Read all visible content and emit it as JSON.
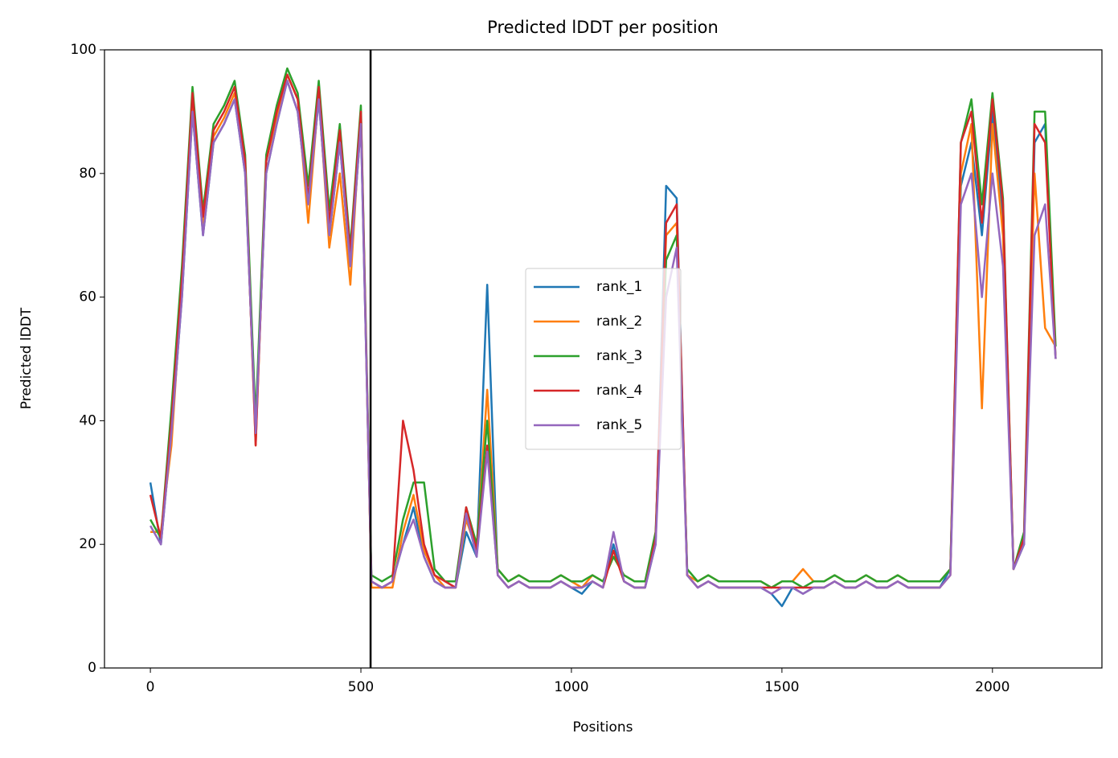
{
  "chart_data": {
    "type": "line",
    "title": "Predicted lDDT per position",
    "xlabel": "Positions",
    "ylabel": "Predicted lDDT",
    "x": [
      0,
      25,
      50,
      75,
      100,
      125,
      150,
      175,
      200,
      225,
      250,
      275,
      300,
      325,
      350,
      375,
      400,
      425,
      450,
      475,
      500,
      525,
      550,
      575,
      600,
      625,
      650,
      675,
      700,
      725,
      750,
      775,
      800,
      825,
      850,
      875,
      900,
      925,
      950,
      975,
      1000,
      1025,
      1050,
      1075,
      1100,
      1125,
      1150,
      1175,
      1200,
      1225,
      1250,
      1275,
      1300,
      1325,
      1350,
      1375,
      1400,
      1425,
      1450,
      1475,
      1500,
      1525,
      1550,
      1575,
      1600,
      1625,
      1650,
      1675,
      1700,
      1725,
      1750,
      1775,
      1800,
      1825,
      1850,
      1875,
      1900,
      1925,
      1950,
      1975,
      2000,
      2025,
      2050,
      2075,
      2100,
      2125,
      2150
    ],
    "series": [
      {
        "name": "rank_1",
        "color": "#1f77b4",
        "values": [
          30,
          20,
          38,
          60,
          90,
          70,
          85,
          88,
          92,
          80,
          38,
          80,
          88,
          95,
          90,
          75,
          92,
          70,
          85,
          65,
          88,
          14,
          13,
          14,
          20,
          26,
          18,
          14,
          13,
          13,
          22,
          18,
          62,
          15,
          13,
          14,
          13,
          13,
          13,
          14,
          13,
          12,
          14,
          13,
          20,
          14,
          13,
          13,
          20,
          78,
          76,
          15,
          13,
          14,
          13,
          13,
          13,
          13,
          13,
          12,
          10,
          13,
          12,
          13,
          13,
          14,
          13,
          13,
          14,
          13,
          13,
          14,
          13,
          13,
          13,
          13,
          16,
          78,
          85,
          70,
          90,
          72,
          16,
          20,
          85,
          88,
          50
        ]
      },
      {
        "name": "rank_2",
        "color": "#ff7f0e",
        "values": [
          22,
          22,
          36,
          62,
          92,
          72,
          86,
          89,
          93,
          82,
          36,
          82,
          89,
          96,
          92,
          72,
          93,
          68,
          80,
          62,
          90,
          13,
          13,
          13,
          22,
          28,
          19,
          15,
          13,
          13,
          24,
          19,
          45,
          16,
          14,
          15,
          14,
          14,
          14,
          15,
          14,
          13,
          15,
          14,
          18,
          15,
          14,
          14,
          21,
          70,
          72,
          15,
          14,
          15,
          14,
          14,
          14,
          14,
          14,
          13,
          14,
          14,
          16,
          14,
          14,
          15,
          14,
          14,
          15,
          14,
          14,
          15,
          14,
          14,
          14,
          14,
          16,
          80,
          88,
          42,
          88,
          70,
          16,
          21,
          80,
          55,
          52
        ]
      },
      {
        "name": "rank_3",
        "color": "#2ca02c",
        "values": [
          24,
          21,
          42,
          65,
          94,
          74,
          88,
          91,
          95,
          83,
          40,
          83,
          91,
          97,
          93,
          78,
          95,
          74,
          88,
          68,
          91,
          15,
          14,
          15,
          24,
          30,
          30,
          16,
          14,
          14,
          26,
          20,
          40,
          16,
          14,
          15,
          14,
          14,
          14,
          15,
          14,
          14,
          15,
          14,
          18,
          15,
          14,
          14,
          22,
          66,
          70,
          16,
          14,
          15,
          14,
          14,
          14,
          14,
          14,
          13,
          14,
          14,
          13,
          14,
          14,
          15,
          14,
          14,
          15,
          14,
          14,
          15,
          14,
          14,
          14,
          14,
          16,
          85,
          92,
          75,
          93,
          76,
          16,
          22,
          90,
          90,
          52
        ]
      },
      {
        "name": "rank_4",
        "color": "#d62728",
        "values": [
          28,
          21,
          40,
          63,
          93,
          73,
          87,
          90,
          94,
          82,
          36,
          82,
          90,
          96,
          92,
          76,
          94,
          72,
          87,
          67,
          90,
          14,
          13,
          14,
          40,
          32,
          20,
          15,
          14,
          13,
          26,
          19,
          36,
          15,
          13,
          14,
          13,
          13,
          13,
          14,
          13,
          13,
          14,
          13,
          19,
          14,
          13,
          13,
          21,
          72,
          75,
          15,
          13,
          14,
          13,
          13,
          13,
          13,
          13,
          13,
          13,
          13,
          13,
          13,
          13,
          14,
          13,
          13,
          14,
          13,
          13,
          14,
          13,
          13,
          13,
          13,
          15,
          85,
          90,
          72,
          92,
          75,
          16,
          21,
          88,
          85,
          50
        ]
      },
      {
        "name": "rank_5",
        "color": "#9467bd",
        "values": [
          23,
          20,
          38,
          60,
          90,
          70,
          85,
          88,
          92,
          80,
          38,
          80,
          88,
          95,
          90,
          75,
          92,
          70,
          85,
          65,
          88,
          14,
          13,
          14,
          20,
          24,
          18,
          14,
          13,
          13,
          25,
          18,
          35,
          15,
          13,
          14,
          13,
          13,
          13,
          14,
          13,
          13,
          14,
          13,
          22,
          14,
          13,
          13,
          20,
          60,
          68,
          15,
          13,
          14,
          13,
          13,
          13,
          13,
          13,
          12,
          13,
          13,
          12,
          13,
          13,
          14,
          13,
          13,
          14,
          13,
          13,
          14,
          13,
          13,
          13,
          13,
          15,
          75,
          80,
          60,
          80,
          65,
          16,
          20,
          70,
          75,
          50
        ]
      }
    ],
    "vlines": [
      523
    ],
    "vline_color": "#000000",
    "xlim": [
      -109,
      2260
    ],
    "xticks": [
      0,
      500,
      1000,
      1500,
      2000
    ],
    "ylim": [
      0,
      100
    ],
    "yticks": [
      0,
      20,
      40,
      60,
      80,
      100
    ],
    "grid": false,
    "legend": "center"
  }
}
